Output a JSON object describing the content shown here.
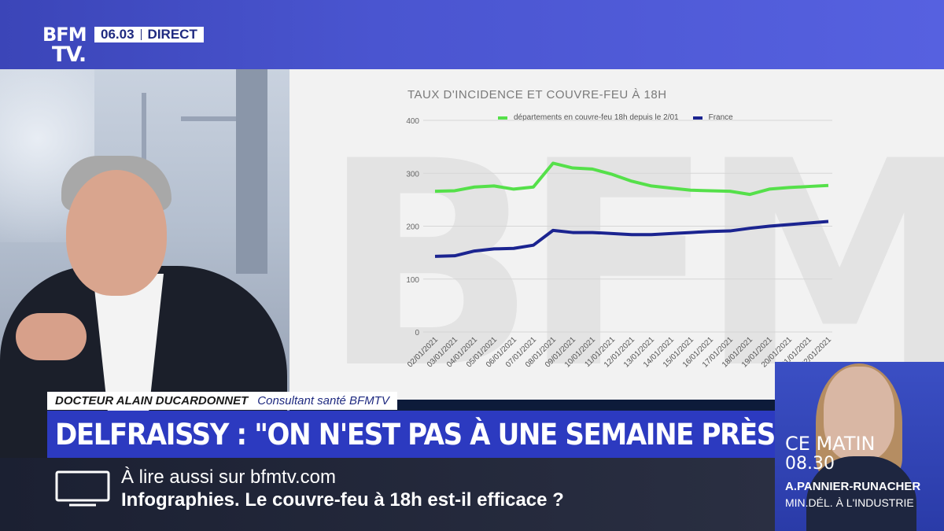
{
  "channel": {
    "logo_line1": "BFM",
    "logo_line2": "TV.",
    "time": "06.03",
    "live": "DIRECT"
  },
  "guest": {
    "name": "DOCTEUR ALAIN DUCARDONNET",
    "role": "Consultant santé BFMTV"
  },
  "headline": "DELFRAISSY : \"ON N'EST PAS À UNE SEMAINE PRÈS\"",
  "ticker": {
    "line1": "À lire aussi sur bfmtv.com",
    "line2": "Infographies. Le couvre-feu à 18h est-il efficace ?"
  },
  "promo": {
    "title": "CE MATIN",
    "time": "08.30",
    "guest": "A.PANNIER-RUNACHER",
    "guest_role": "MIN.DÉL. À L'INDUSTRIE"
  },
  "watermark": "BFM",
  "colors": {
    "headline_bg": "#2c3ac0",
    "top_band": "#4a55d0",
    "series_green": "#55e04a",
    "series_navy": "#1b2490"
  },
  "chart_data": {
    "type": "line",
    "title": "TAUX D'INCIDENCE ET COUVRE-FEU À 18H",
    "x": [
      "02/01/2021",
      "03/01/2021",
      "04/01/2021",
      "05/01/2021",
      "06/01/2021",
      "07/01/2021",
      "08/01/2021",
      "09/01/2021",
      "10/01/2021",
      "11/01/2021",
      "12/01/2021",
      "13/01/2021",
      "14/01/2021",
      "15/01/2021",
      "16/01/2021",
      "17/01/2021",
      "18/01/2021",
      "19/01/2021",
      "20/01/2021",
      "21/01/2021",
      "22/01/2021"
    ],
    "series": [
      {
        "name": "départements en couvre-feu 18h depuis le 2/01",
        "color": "#55e04a",
        "values": [
          266,
          267,
          274,
          276,
          270,
          274,
          319,
          310,
          308,
          298,
          285,
          276,
          272,
          268,
          267,
          266,
          260,
          270,
          273,
          275,
          277
        ]
      },
      {
        "name": "France",
        "color": "#1b2490",
        "values": [
          143,
          144,
          153,
          157,
          158,
          164,
          192,
          188,
          188,
          186,
          184,
          184,
          186,
          188,
          190,
          191,
          196,
          200,
          203,
          206,
          209
        ]
      }
    ],
    "ylim": [
      0,
      400
    ],
    "yticks": [
      "0",
      "100",
      "200",
      "300",
      "400"
    ],
    "grid": true,
    "legend": "top"
  }
}
